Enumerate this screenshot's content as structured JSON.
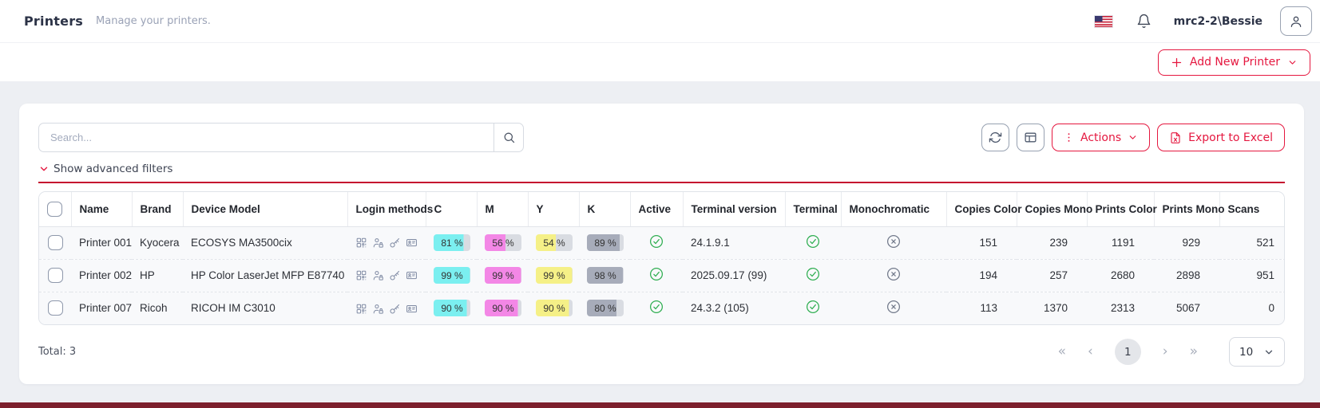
{
  "header": {
    "title": "Printers",
    "subtitle": "Manage your printers.",
    "username": "mrc2-2\\Bessie"
  },
  "toolbar": {
    "add_button_label": "Add New Printer"
  },
  "panel": {
    "search_placeholder": "Search...",
    "filters_toggle_label": "Show advanced filters",
    "actions_button_label": "Actions",
    "export_button_label": "Export to Excel"
  },
  "table": {
    "columns": [
      "Name",
      "Brand",
      "Device Model",
      "Login methods",
      "C",
      "M",
      "Y",
      "K",
      "Active",
      "Terminal version",
      "Terminal",
      "Monochromatic",
      "Copies Color",
      "Copies Mono",
      "Prints Color",
      "Prints Mono",
      "Scans"
    ],
    "login_methods": [
      "qr-code",
      "user-pin",
      "key",
      "id-card"
    ],
    "rows": [
      {
        "name": "Printer 001",
        "brand": "Kyocera",
        "model": "ECOSYS MA3500cix",
        "c": 81,
        "m": 56,
        "y": 54,
        "k": 89,
        "active": true,
        "terminal_version": "24.1.9.1",
        "terminal": true,
        "monochromatic": false,
        "copies_color": 151,
        "copies_mono": 239,
        "prints_color": 1191,
        "prints_mono": 929,
        "scans": 521
      },
      {
        "name": "Printer 002",
        "brand": "HP",
        "model": "HP Color LaserJet MFP E87740",
        "c": 99,
        "m": 99,
        "y": 99,
        "k": 98,
        "active": true,
        "terminal_version": "2025.09.17 (99)",
        "terminal": true,
        "monochromatic": false,
        "copies_color": 194,
        "copies_mono": 257,
        "prints_color": 2680,
        "prints_mono": 2898,
        "scans": 951
      },
      {
        "name": "Printer 007",
        "brand": "Ricoh",
        "model": "RICOH IM C3010",
        "c": 90,
        "m": 90,
        "y": 90,
        "k": 80,
        "active": true,
        "terminal_version": "24.3.2 (105)",
        "terminal": true,
        "monochromatic": false,
        "copies_color": 113,
        "copies_mono": 1370,
        "prints_color": 2313,
        "prints_mono": 5067,
        "scans": 0
      }
    ]
  },
  "footer": {
    "total": "Total: 3",
    "current_page": "1",
    "page_size": "10",
    "pagination_icons": {
      "first": "«",
      "prev": "‹",
      "next": "›",
      "last": "»"
    }
  },
  "colors": {
    "accent": "#e5173f",
    "divider": "#c50e2f",
    "active": "#2fae51",
    "inactive": "#71798a",
    "cmyk": {
      "c": "#7beff0",
      "m": "#f387e6",
      "y": "#f5f087",
      "k": "#a7acba",
      "track": "#d9dce2"
    }
  }
}
